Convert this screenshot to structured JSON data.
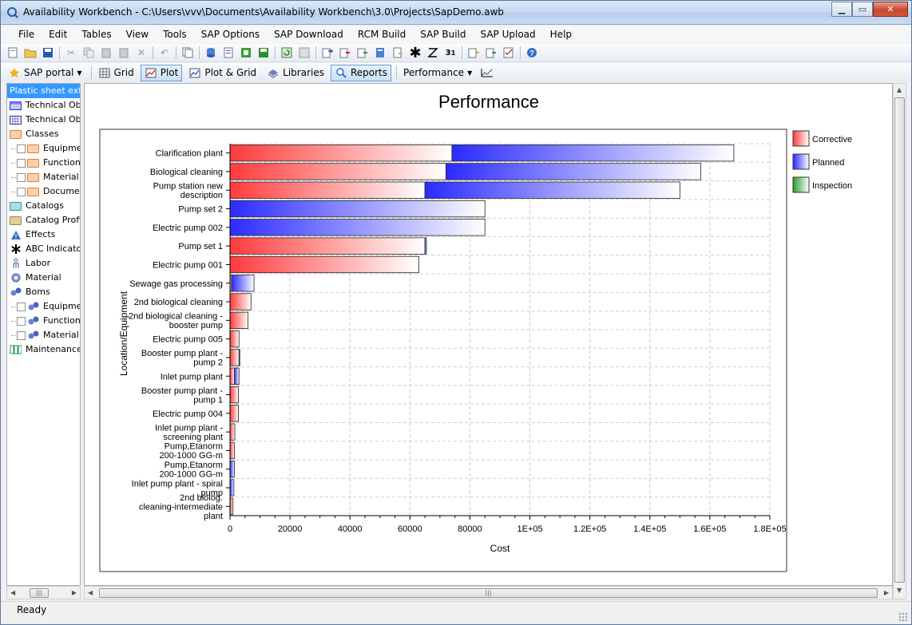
{
  "window": {
    "title": "Availability Workbench - C:\\Users\\vvv\\Documents\\Availability Workbench\\3.0\\Projects\\SapDemo.awb"
  },
  "menu": [
    "File",
    "Edit",
    "Tables",
    "View",
    "Tools",
    "SAP Options",
    "SAP Download",
    "RCM Build",
    "SAP Build",
    "SAP Upload",
    "Help"
  ],
  "toolbar2": {
    "sap_portal": "SAP portal",
    "grid": "Grid",
    "plot": "Plot",
    "plot_grid": "Plot & Grid",
    "libraries": "Libraries",
    "reports": "Reports",
    "performance": "Performance"
  },
  "tree": [
    {
      "label": "Plastic sheet extru",
      "icon": "folder-icon",
      "selected": true,
      "level": 0
    },
    {
      "label": "Technical Obj",
      "icon": "blue-table-icon",
      "level": 0
    },
    {
      "label": "Technical Obj",
      "icon": "grid-table-icon",
      "level": 0
    },
    {
      "label": "Classes",
      "icon": "orange-folder-icon",
      "level": 0
    },
    {
      "label": "Equipment",
      "icon": "orange-folder-icon",
      "level": 1
    },
    {
      "label": "Functiona",
      "icon": "orange-folder-icon",
      "level": 1
    },
    {
      "label": "Material C",
      "icon": "orange-folder-icon",
      "level": 1
    },
    {
      "label": "Document",
      "icon": "orange-folder-icon",
      "level": 1
    },
    {
      "label": "Catalogs",
      "icon": "teal-folder-icon",
      "level": 0
    },
    {
      "label": "Catalog Profile",
      "icon": "tan-folder-icon",
      "level": 0
    },
    {
      "label": "Effects",
      "icon": "warning-icon",
      "level": 0
    },
    {
      "label": "ABC Indicator",
      "icon": "asterisk-icon",
      "level": 0
    },
    {
      "label": "Labor",
      "icon": "person-icon",
      "level": 0
    },
    {
      "label": "Material",
      "icon": "gear-icon",
      "level": 0
    },
    {
      "label": "Boms",
      "icon": "boms-icon",
      "level": 0
    },
    {
      "label": "Equipment",
      "icon": "boms-icon",
      "level": 1
    },
    {
      "label": "Functiona",
      "icon": "boms-icon",
      "level": 1
    },
    {
      "label": "Material B",
      "icon": "boms-icon",
      "level": 1
    },
    {
      "label": "Maintenance P",
      "icon": "people-icon",
      "level": 0
    }
  ],
  "status": {
    "text": "Ready"
  },
  "colors": {
    "corrective": "#ff3b3b",
    "planned": "#2b2bff",
    "inspection": "#2e9a2e"
  },
  "chart_data": {
    "type": "bar",
    "orientation": "horizontal",
    "stacked": true,
    "title": "Performance",
    "xlabel": "Cost",
    "ylabel": "Location/Equipment",
    "xlim": [
      0,
      180000
    ],
    "xticks": [
      "0",
      "20000",
      "40000",
      "60000",
      "80000",
      "1E+05",
      "1.2E+05",
      "1.4E+05",
      "1.6E+05",
      "1.8E+05"
    ],
    "grid": true,
    "legend_position": "right",
    "categories": [
      [
        "Clarification plant"
      ],
      [
        "Biological cleaning"
      ],
      [
        "Pump station new",
        "description"
      ],
      [
        "Pump set 2"
      ],
      [
        "Electric pump 002"
      ],
      [
        "Pump set 1"
      ],
      [
        "Electric pump 001"
      ],
      [
        "Sewage gas processing"
      ],
      [
        "2nd biological cleaning"
      ],
      [
        "2nd biological cleaning -",
        "booster pump"
      ],
      [
        "Electric pump 005"
      ],
      [
        "Booster pump plant -",
        "pump 2"
      ],
      [
        "Inlet pump plant"
      ],
      [
        "Booster pump plant -",
        "pump 1"
      ],
      [
        "Electric pump 004"
      ],
      [
        "Inlet pump plant -",
        "screening plant"
      ],
      [
        "Pump,Etanorm",
        "200-1000 GG-m"
      ],
      [
        "Pump,Etanorm",
        "200-1000 GG-m"
      ],
      [
        "Inlet pump plant - spiral",
        "pump"
      ],
      [
        "2nd biolog.",
        "cleaning-intermediate",
        "plant"
      ]
    ],
    "series": [
      {
        "name": "Corrective",
        "values": [
          74000,
          72000,
          65000,
          0,
          0,
          65000,
          63000,
          500,
          7000,
          6000,
          3000,
          3000,
          1500,
          2800,
          2800,
          1600,
          1500,
          0,
          0,
          1000
        ]
      },
      {
        "name": "Planned",
        "values": [
          94000,
          85000,
          85000,
          85000,
          85000,
          500,
          0,
          7500,
          0,
          0,
          0,
          200,
          1500,
          0,
          0,
          0,
          0,
          1500,
          1300,
          0
        ]
      },
      {
        "name": "Inspection",
        "values": [
          0,
          0,
          0,
          0,
          0,
          0,
          0,
          0,
          0,
          0,
          0,
          0,
          0,
          0,
          0,
          0,
          0,
          0,
          0,
          0
        ]
      }
    ]
  }
}
